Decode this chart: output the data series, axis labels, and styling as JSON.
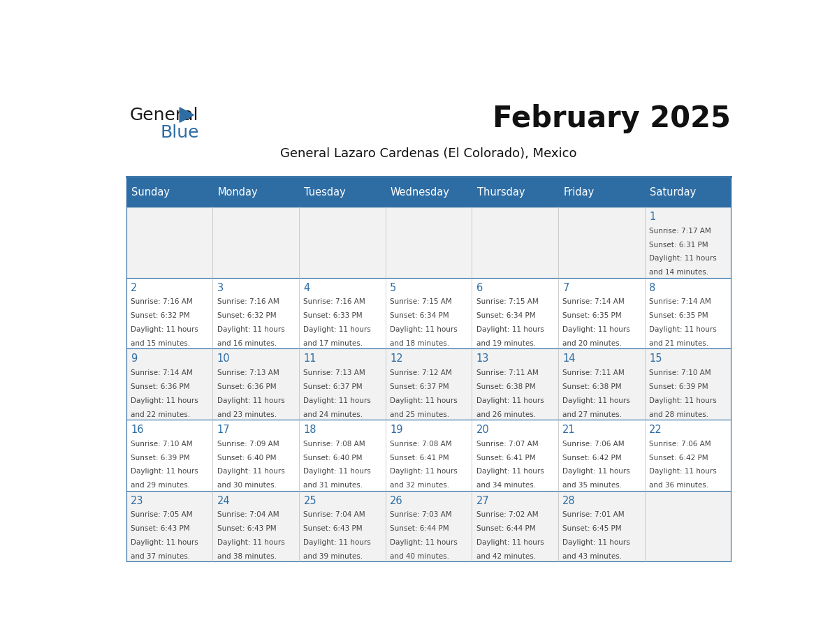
{
  "title": "February 2025",
  "subtitle": "General Lazaro Cardenas (El Colorado), Mexico",
  "header_bg": "#2e6da4",
  "header_text_color": "#ffffff",
  "cell_bg_odd": "#f2f2f2",
  "cell_bg_even": "#ffffff",
  "day_number_color": "#2e6da4",
  "info_text_color": "#444444",
  "border_color": "#2e6da4",
  "days_of_week": [
    "Sunday",
    "Monday",
    "Tuesday",
    "Wednesday",
    "Thursday",
    "Friday",
    "Saturday"
  ],
  "calendar_data": [
    [
      null,
      null,
      null,
      null,
      null,
      null,
      {
        "day": "1",
        "sunrise": "7:17 AM",
        "sunset": "6:31 PM",
        "daylight1": "Daylight: 11 hours",
        "daylight2": "and 14 minutes."
      }
    ],
    [
      {
        "day": "2",
        "sunrise": "7:16 AM",
        "sunset": "6:32 PM",
        "daylight1": "Daylight: 11 hours",
        "daylight2": "and 15 minutes."
      },
      {
        "day": "3",
        "sunrise": "7:16 AM",
        "sunset": "6:32 PM",
        "daylight1": "Daylight: 11 hours",
        "daylight2": "and 16 minutes."
      },
      {
        "day": "4",
        "sunrise": "7:16 AM",
        "sunset": "6:33 PM",
        "daylight1": "Daylight: 11 hours",
        "daylight2": "and 17 minutes."
      },
      {
        "day": "5",
        "sunrise": "7:15 AM",
        "sunset": "6:34 PM",
        "daylight1": "Daylight: 11 hours",
        "daylight2": "and 18 minutes."
      },
      {
        "day": "6",
        "sunrise": "7:15 AM",
        "sunset": "6:34 PM",
        "daylight1": "Daylight: 11 hours",
        "daylight2": "and 19 minutes."
      },
      {
        "day": "7",
        "sunrise": "7:14 AM",
        "sunset": "6:35 PM",
        "daylight1": "Daylight: 11 hours",
        "daylight2": "and 20 minutes."
      },
      {
        "day": "8",
        "sunrise": "7:14 AM",
        "sunset": "6:35 PM",
        "daylight1": "Daylight: 11 hours",
        "daylight2": "and 21 minutes."
      }
    ],
    [
      {
        "day": "9",
        "sunrise": "7:14 AM",
        "sunset": "6:36 PM",
        "daylight1": "Daylight: 11 hours",
        "daylight2": "and 22 minutes."
      },
      {
        "day": "10",
        "sunrise": "7:13 AM",
        "sunset": "6:36 PM",
        "daylight1": "Daylight: 11 hours",
        "daylight2": "and 23 minutes."
      },
      {
        "day": "11",
        "sunrise": "7:13 AM",
        "sunset": "6:37 PM",
        "daylight1": "Daylight: 11 hours",
        "daylight2": "and 24 minutes."
      },
      {
        "day": "12",
        "sunrise": "7:12 AM",
        "sunset": "6:37 PM",
        "daylight1": "Daylight: 11 hours",
        "daylight2": "and 25 minutes."
      },
      {
        "day": "13",
        "sunrise": "7:11 AM",
        "sunset": "6:38 PM",
        "daylight1": "Daylight: 11 hours",
        "daylight2": "and 26 minutes."
      },
      {
        "day": "14",
        "sunrise": "7:11 AM",
        "sunset": "6:38 PM",
        "daylight1": "Daylight: 11 hours",
        "daylight2": "and 27 minutes."
      },
      {
        "day": "15",
        "sunrise": "7:10 AM",
        "sunset": "6:39 PM",
        "daylight1": "Daylight: 11 hours",
        "daylight2": "and 28 minutes."
      }
    ],
    [
      {
        "day": "16",
        "sunrise": "7:10 AM",
        "sunset": "6:39 PM",
        "daylight1": "Daylight: 11 hours",
        "daylight2": "and 29 minutes."
      },
      {
        "day": "17",
        "sunrise": "7:09 AM",
        "sunset": "6:40 PM",
        "daylight1": "Daylight: 11 hours",
        "daylight2": "and 30 minutes."
      },
      {
        "day": "18",
        "sunrise": "7:08 AM",
        "sunset": "6:40 PM",
        "daylight1": "Daylight: 11 hours",
        "daylight2": "and 31 minutes."
      },
      {
        "day": "19",
        "sunrise": "7:08 AM",
        "sunset": "6:41 PM",
        "daylight1": "Daylight: 11 hours",
        "daylight2": "and 32 minutes."
      },
      {
        "day": "20",
        "sunrise": "7:07 AM",
        "sunset": "6:41 PM",
        "daylight1": "Daylight: 11 hours",
        "daylight2": "and 34 minutes."
      },
      {
        "day": "21",
        "sunrise": "7:06 AM",
        "sunset": "6:42 PM",
        "daylight1": "Daylight: 11 hours",
        "daylight2": "and 35 minutes."
      },
      {
        "day": "22",
        "sunrise": "7:06 AM",
        "sunset": "6:42 PM",
        "daylight1": "Daylight: 11 hours",
        "daylight2": "and 36 minutes."
      }
    ],
    [
      {
        "day": "23",
        "sunrise": "7:05 AM",
        "sunset": "6:43 PM",
        "daylight1": "Daylight: 11 hours",
        "daylight2": "and 37 minutes."
      },
      {
        "day": "24",
        "sunrise": "7:04 AM",
        "sunset": "6:43 PM",
        "daylight1": "Daylight: 11 hours",
        "daylight2": "and 38 minutes."
      },
      {
        "day": "25",
        "sunrise": "7:04 AM",
        "sunset": "6:43 PM",
        "daylight1": "Daylight: 11 hours",
        "daylight2": "and 39 minutes."
      },
      {
        "day": "26",
        "sunrise": "7:03 AM",
        "sunset": "6:44 PM",
        "daylight1": "Daylight: 11 hours",
        "daylight2": "and 40 minutes."
      },
      {
        "day": "27",
        "sunrise": "7:02 AM",
        "sunset": "6:44 PM",
        "daylight1": "Daylight: 11 hours",
        "daylight2": "and 42 minutes."
      },
      {
        "day": "28",
        "sunrise": "7:01 AM",
        "sunset": "6:45 PM",
        "daylight1": "Daylight: 11 hours",
        "daylight2": "and 43 minutes."
      },
      null
    ]
  ],
  "logo_general_color": "#1a1a1a",
  "logo_blue_color": "#2e6da4",
  "logo_triangle_color": "#2e6da4",
  "title_fontsize": 30,
  "subtitle_fontsize": 13,
  "header_fontsize": 10.5,
  "day_num_fontsize": 10.5,
  "info_fontsize": 7.5
}
